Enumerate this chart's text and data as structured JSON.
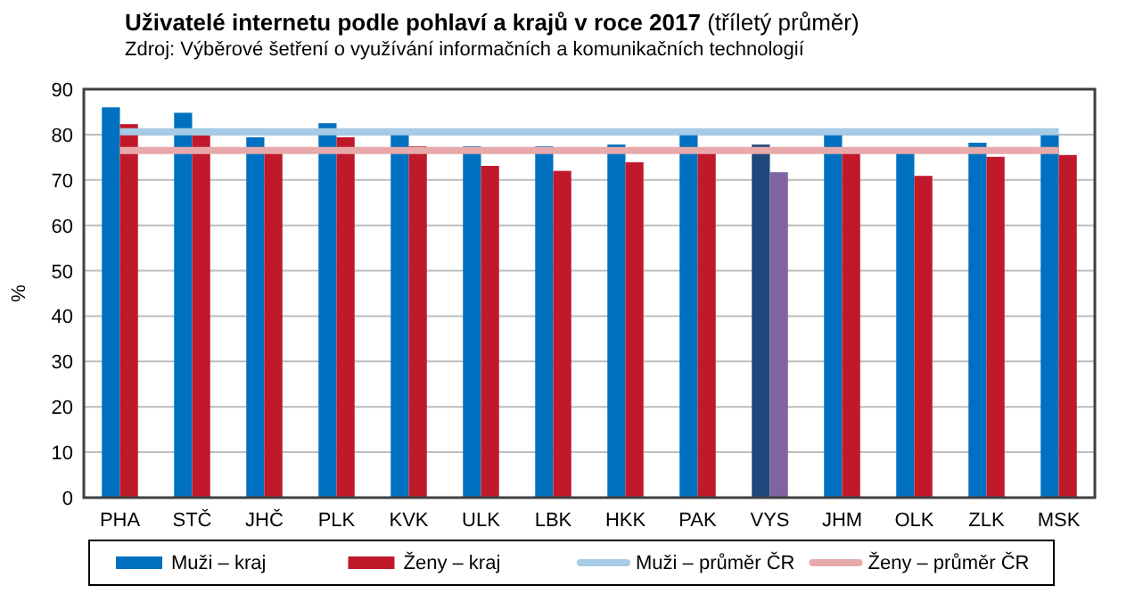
{
  "chart_data": {
    "type": "bar",
    "title": "Uživatelé internetu podle pohlaví a krajů v roce 2017 (tříletý průměr)",
    "subtitle": "Zdroj: Výběrové šetření o využívání informačních a komunikačních technologií",
    "ylabel": "%",
    "categories": [
      "PHA",
      "STČ",
      "JHČ",
      "PLK",
      "KVK",
      "ULK",
      "LBK",
      "HKK",
      "PAK",
      "VYS",
      "JHM",
      "OLK",
      "ZLK",
      "MSK"
    ],
    "ylim": [
      0,
      90
    ],
    "yticks": [
      0,
      10,
      20,
      30,
      40,
      50,
      60,
      70,
      80,
      90
    ],
    "grid": "y",
    "legend": "bottom",
    "series": [
      {
        "name": "Muži – kraj",
        "color": "#0070c0",
        "colors": [
          "#0070c0",
          "#0070c0",
          "#0070c0",
          "#0070c0",
          "#0070c0",
          "#0070c0",
          "#0070c0",
          "#0070c0",
          "#0070c0",
          "#1f497d",
          "#0070c0",
          "#0070c0",
          "#0070c0",
          "#0070c0"
        ],
        "values": [
          86,
          84.8,
          79.4,
          82.5,
          80.3,
          77.4,
          77.4,
          77.8,
          80.2,
          77.8,
          80.2,
          76,
          78.2,
          80.2
        ]
      },
      {
        "name": "Ženy – kraj",
        "color": "#c0192a",
        "colors": [
          "#c0192a",
          "#c0192a",
          "#c0192a",
          "#c0192a",
          "#c0192a",
          "#c0192a",
          "#c0192a",
          "#c0192a",
          "#c0192a",
          "#8064a2",
          "#c0192a",
          "#c0192a",
          "#c0192a",
          "#c0192a"
        ],
        "values": [
          82.3,
          79.8,
          76,
          79.4,
          77.4,
          73.1,
          72,
          73.9,
          76,
          71.7,
          76,
          70.9,
          75.1,
          75.5
        ]
      },
      {
        "name": "Muži – průměr ČR",
        "type": "line",
        "color": "#a6cbe6",
        "values": [
          80.6,
          80.6,
          80.6,
          80.6,
          80.6,
          80.6,
          80.6,
          80.6,
          80.6,
          80.6,
          80.6,
          80.6,
          80.6,
          80.6
        ]
      },
      {
        "name": "Ženy – průměr ČR",
        "type": "line",
        "color": "#e8a9aa",
        "values": [
          76.5,
          76.5,
          76.5,
          76.5,
          76.5,
          76.5,
          76.5,
          76.5,
          76.5,
          76.5,
          76.5,
          76.5,
          76.5,
          76.5
        ]
      }
    ]
  }
}
